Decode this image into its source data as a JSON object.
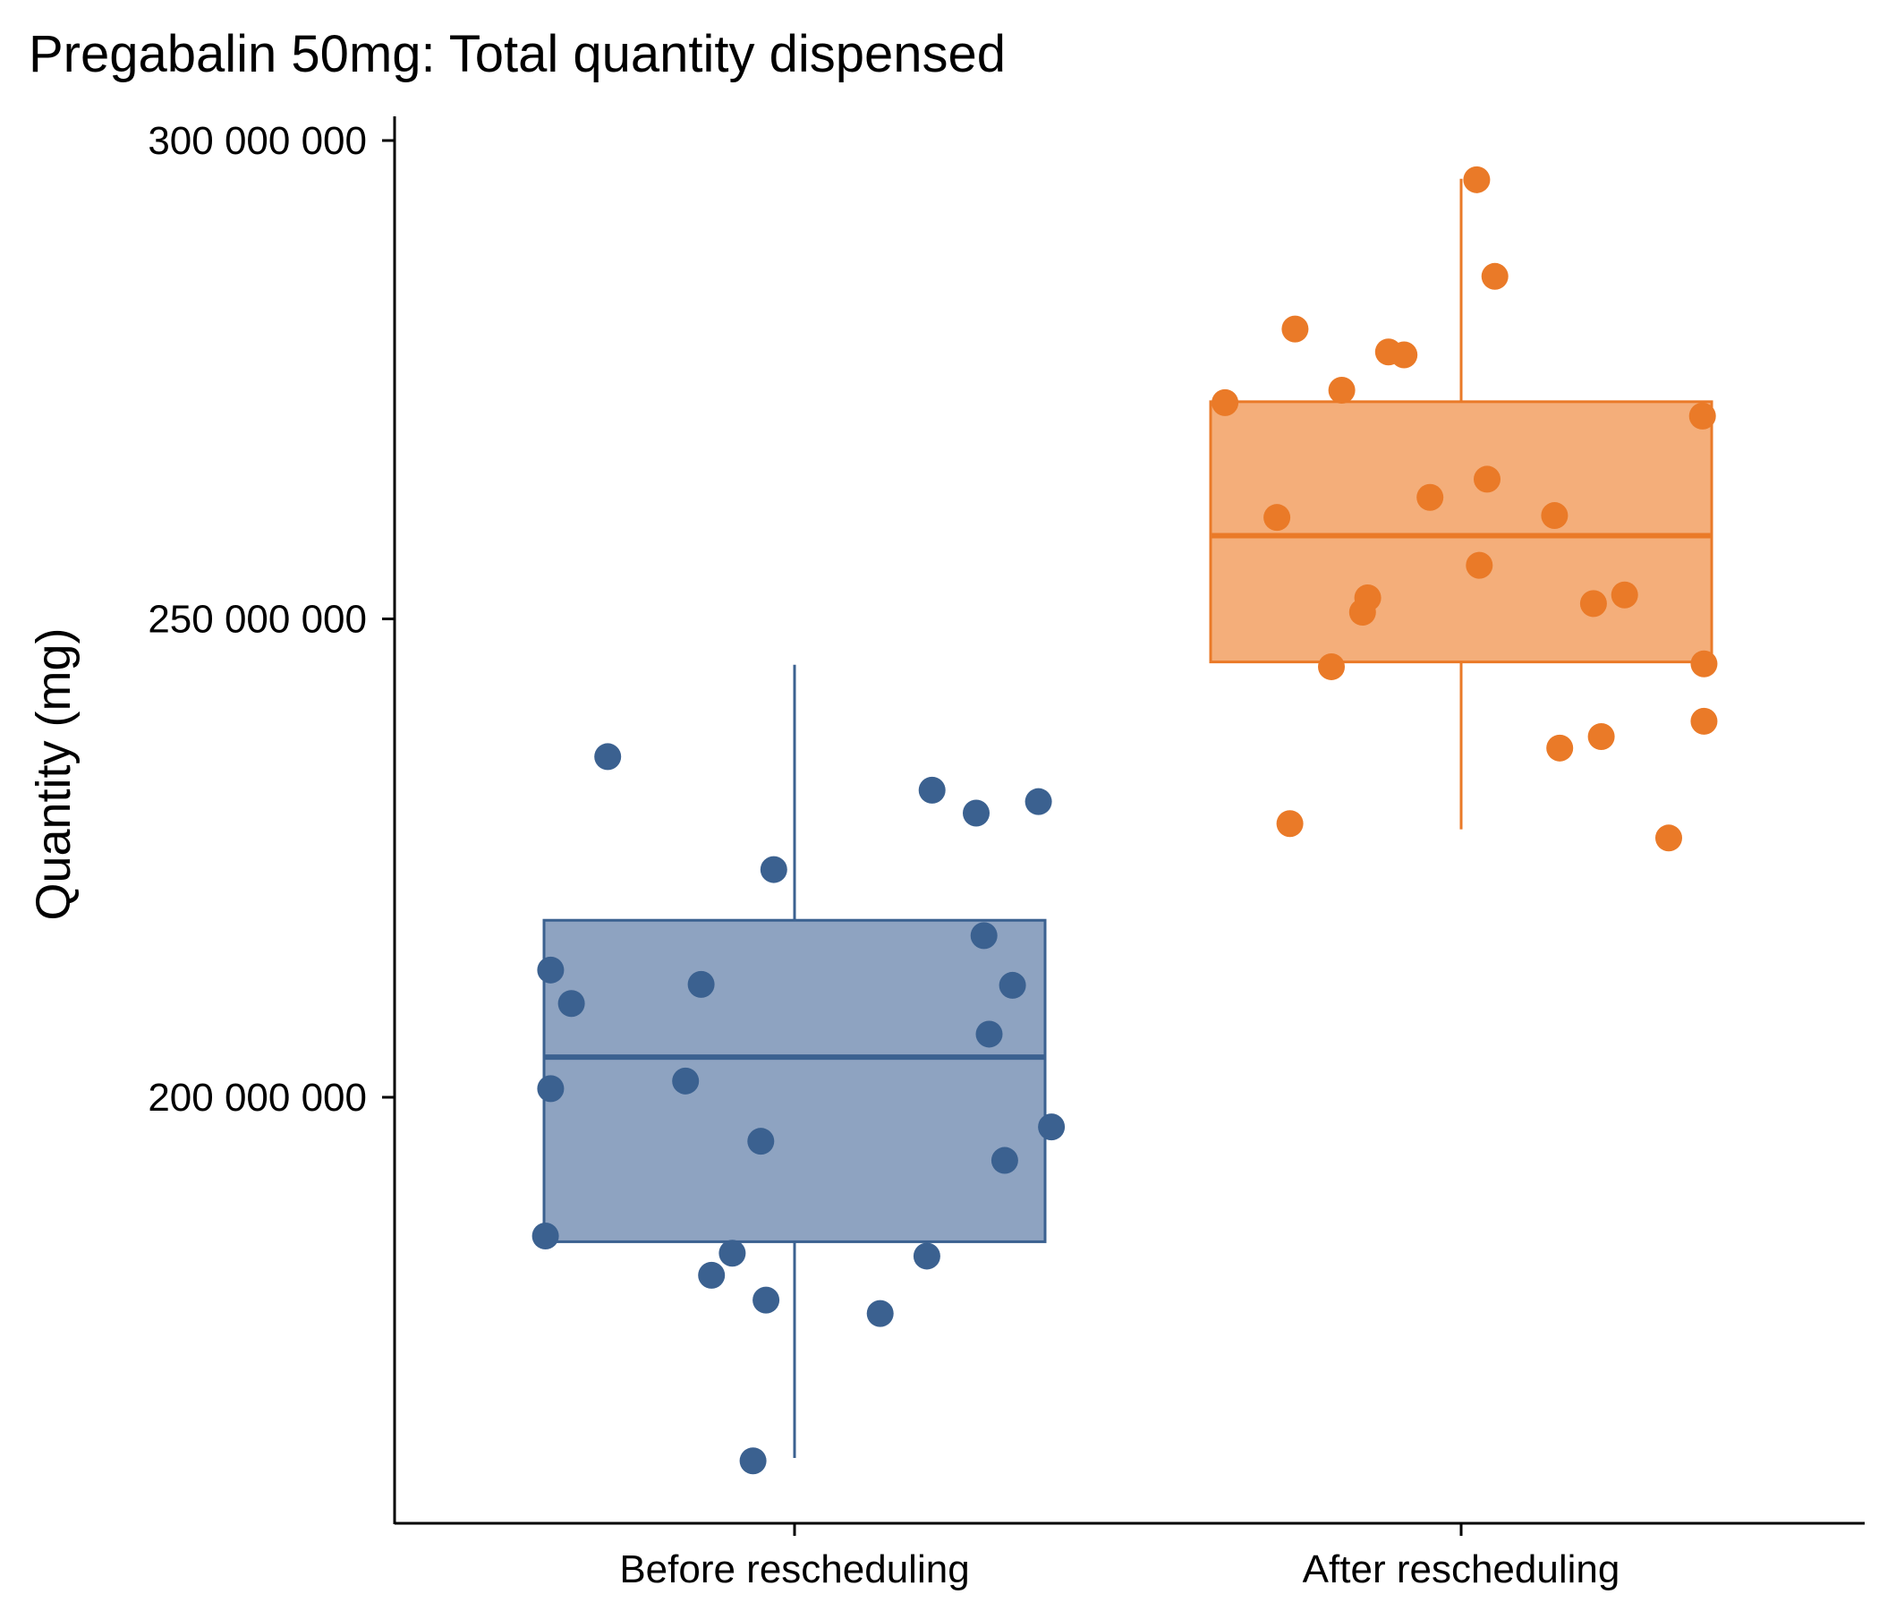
{
  "chart_data": {
    "type": "boxplot",
    "title": "Pregabalin 50mg: Total quantity dispensed",
    "xlabel": "",
    "ylabel": "Quantity (mg)",
    "ylim": [
      158000000,
      302500000
    ],
    "yticks": [
      200000000,
      250000000,
      300000000
    ],
    "ytick_labels": [
      "200 000 000",
      "250 000 000",
      "300 000 000"
    ],
    "categories": [
      "Before rescheduling",
      "After rescheduling"
    ],
    "grid": false,
    "legend": "none",
    "series": [
      {
        "category": "Before rescheduling",
        "color": "#3b6190",
        "fill": "#8ea3c1",
        "box": {
          "min": 162300000,
          "q1": 184900000,
          "median": 204200000,
          "q3": 218500000,
          "max": 245200000
        },
        "points": [
          {
            "x": -0.48,
            "y": 185500000
          },
          {
            "x": -0.47,
            "y": 213300000
          },
          {
            "x": -0.47,
            "y": 200900000
          },
          {
            "x": -0.43,
            "y": 209800000
          },
          {
            "x": -0.36,
            "y": 235600000
          },
          {
            "x": -0.21,
            "y": 201700000
          },
          {
            "x": -0.18,
            "y": 211800000
          },
          {
            "x": -0.16,
            "y": 181400000
          },
          {
            "x": -0.12,
            "y": 183700000
          },
          {
            "x": -0.08,
            "y": 162000000
          },
          {
            "x": -0.065,
            "y": 195400000
          },
          {
            "x": -0.055,
            "y": 178800000
          },
          {
            "x": -0.04,
            "y": 223800000
          },
          {
            "x": 0.165,
            "y": 177400000
          },
          {
            "x": 0.255,
            "y": 183400000
          },
          {
            "x": 0.265,
            "y": 232100000
          },
          {
            "x": 0.35,
            "y": 229700000
          },
          {
            "x": 0.365,
            "y": 216900000
          },
          {
            "x": 0.375,
            "y": 206600000
          },
          {
            "x": 0.405,
            "y": 193400000
          },
          {
            "x": 0.42,
            "y": 211700000
          },
          {
            "x": 0.47,
            "y": 230900000
          },
          {
            "x": 0.495,
            "y": 196900000
          }
        ]
      },
      {
        "category": "After rescheduling",
        "color": "#ea7a28",
        "fill": "#f4ae7a",
        "box": {
          "min": 228000000,
          "q1": 245500000,
          "median": 258700000,
          "q3": 272700000,
          "max": 296000000
        },
        "points": [
          {
            "x": -0.455,
            "y": 272600000
          },
          {
            "x": -0.355,
            "y": 260600000
          },
          {
            "x": -0.33,
            "y": 228600000
          },
          {
            "x": -0.32,
            "y": 280300000
          },
          {
            "x": -0.25,
            "y": 245000000
          },
          {
            "x": -0.23,
            "y": 273900000
          },
          {
            "x": -0.19,
            "y": 250700000
          },
          {
            "x": -0.18,
            "y": 252200000
          },
          {
            "x": -0.14,
            "y": 277900000
          },
          {
            "x": -0.11,
            "y": 277600000
          },
          {
            "x": -0.06,
            "y": 262700000
          },
          {
            "x": 0.03,
            "y": 295900000
          },
          {
            "x": 0.035,
            "y": 255600000
          },
          {
            "x": 0.05,
            "y": 264600000
          },
          {
            "x": 0.065,
            "y": 285800000
          },
          {
            "x": 0.18,
            "y": 260800000
          },
          {
            "x": 0.19,
            "y": 236500000
          },
          {
            "x": 0.255,
            "y": 251600000
          },
          {
            "x": 0.27,
            "y": 237700000
          },
          {
            "x": 0.315,
            "y": 252500000
          },
          {
            "x": 0.4,
            "y": 227100000
          },
          {
            "x": 0.465,
            "y": 271200000
          },
          {
            "x": 0.468,
            "y": 245300000
          },
          {
            "x": 0.468,
            "y": 239300000
          }
        ]
      }
    ]
  }
}
